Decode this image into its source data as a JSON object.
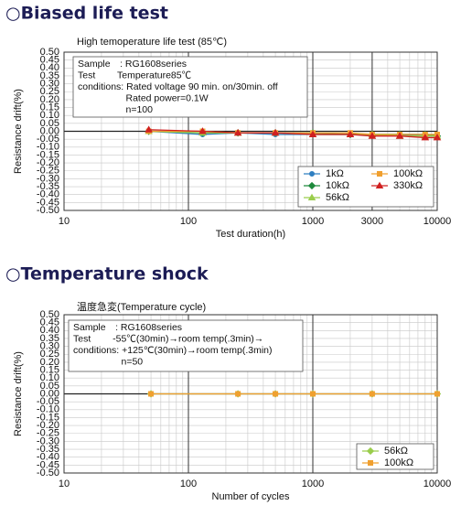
{
  "chart_data": [
    {
      "type": "line",
      "heading": "○Biased  life test",
      "title": "High temoperature life test (85℃)",
      "x_label": "Test duration(h)",
      "y_label": "Resistance drift(%)",
      "xscale": "log",
      "xlim": [
        10,
        10000
      ],
      "xticks": [
        10,
        100,
        1000,
        3000,
        10000
      ],
      "xminorticks": [
        20,
        30,
        40,
        50,
        60,
        70,
        80,
        90,
        200,
        300,
        400,
        500,
        600,
        700,
        800,
        900,
        2000,
        4000,
        5000,
        6000,
        7000,
        8000,
        9000
      ],
      "ylim": [
        -0.5,
        0.5
      ],
      "yticks": [
        {
          "value": 0.5,
          "label": "0.50"
        },
        {
          "value": 0.45,
          "label": "0.45"
        },
        {
          "value": 0.4,
          "label": "0.40"
        },
        {
          "value": 0.35,
          "label": "0.35"
        },
        {
          "value": 0.3,
          "label": "0.30"
        },
        {
          "value": 0.25,
          "label": "0.25"
        },
        {
          "value": 0.2,
          "label": "0.20"
        },
        {
          "value": 0.15,
          "label": "0.15"
        },
        {
          "value": 0.1,
          "label": "0.10"
        },
        {
          "value": 0.05,
          "label": "0.05"
        },
        {
          "value": 0,
          "label": "0.00"
        },
        {
          "value": -0.05,
          "label": "-0.05"
        },
        {
          "value": -0.1,
          "label": "-0.10"
        },
        {
          "value": -0.15,
          "label": "-0.15"
        },
        {
          "value": -0.2,
          "label": "-0.20"
        },
        {
          "value": -0.25,
          "label": "-0.25"
        },
        {
          "value": -0.3,
          "label": "-0.30"
        },
        {
          "value": -0.35,
          "label": "-0.35"
        },
        {
          "value": -0.4,
          "label": "-0.40"
        },
        {
          "value": -0.45,
          "label": "-0.45"
        },
        {
          "value": -0.5,
          "label": "-0.50"
        }
      ],
      "grid": true,
      "legend": "lower right",
      "legend_columns": 2,
      "annotation": [
        "Sample　: RG1608series",
        "Test　　 Temperature85℃",
        "conditions: Rated voltage 90 min. on/30min. off",
        "　　　　　Rated power=0.1W",
        "　　　　　n=100"
      ],
      "x": [
        48,
        130,
        250,
        500,
        1000,
        2000,
        3000,
        5000,
        8000,
        10000
      ],
      "series": [
        {
          "name": "1kΩ",
          "color": "#2f7fc1",
          "marker": "circle",
          "values": [
            0,
            -0.02,
            -0.01,
            -0.02,
            -0.02,
            -0.02,
            -0.02,
            -0.02,
            -0.03,
            -0.03
          ]
        },
        {
          "name": "10kΩ",
          "color": "#1e8a3c",
          "marker": "diamond",
          "values": [
            0,
            -0.01,
            -0.01,
            -0.01,
            -0.01,
            -0.02,
            -0.02,
            -0.02,
            -0.02,
            -0.03
          ]
        },
        {
          "name": "56kΩ",
          "color": "#9acd4c",
          "marker": "triangle",
          "values": [
            0,
            -0.01,
            -0.01,
            -0.01,
            -0.02,
            -0.02,
            -0.02,
            -0.03,
            -0.03,
            -0.03
          ]
        },
        {
          "name": "100kΩ",
          "color": "#f0a030",
          "marker": "square",
          "values": [
            0,
            0,
            -0.01,
            -0.01,
            -0.01,
            -0.01,
            -0.02,
            -0.02,
            -0.02,
            -0.02
          ]
        },
        {
          "name": "330kΩ",
          "color": "#d02020",
          "marker": "triangle",
          "values": [
            0.01,
            0,
            -0.01,
            -0.01,
            -0.02,
            -0.02,
            -0.03,
            -0.03,
            -0.04,
            -0.04
          ]
        }
      ]
    },
    {
      "type": "line",
      "heading": "○Temperature shock",
      "title": "温度急変(Temperature cycle)",
      "x_label": "Number of cycles",
      "y_label": "Resistance drift(%)",
      "xscale": "log",
      "xlim": [
        10,
        10000
      ],
      "xticks": [
        10,
        100,
        1000,
        10000
      ],
      "xminorticks": [
        20,
        30,
        40,
        50,
        60,
        70,
        80,
        90,
        200,
        300,
        400,
        500,
        600,
        700,
        800,
        900,
        2000,
        3000,
        4000,
        5000,
        6000,
        7000,
        8000,
        9000
      ],
      "ylim": [
        -0.5,
        0.5
      ],
      "yticks": [
        {
          "value": 0.5,
          "label": "0.50"
        },
        {
          "value": 0.45,
          "label": "0.45"
        },
        {
          "value": 0.4,
          "label": "0.40"
        },
        {
          "value": 0.35,
          "label": "0.35"
        },
        {
          "value": 0.3,
          "label": "0.30"
        },
        {
          "value": 0.25,
          "label": "0.25"
        },
        {
          "value": 0.2,
          "label": "0.20"
        },
        {
          "value": 0.15,
          "label": "0.15"
        },
        {
          "value": 0.1,
          "label": "0.10"
        },
        {
          "value": 0.05,
          "label": "0.05"
        },
        {
          "value": 0,
          "label": "0.00"
        },
        {
          "value": -0.05,
          "label": "-0.05"
        },
        {
          "value": -0.1,
          "label": "-0.10"
        },
        {
          "value": -0.15,
          "label": "-0.15"
        },
        {
          "value": -0.2,
          "label": "-0.20"
        },
        {
          "value": -0.25,
          "label": "-0.25"
        },
        {
          "value": -0.3,
          "label": "-0.30"
        },
        {
          "value": -0.35,
          "label": "-0.35"
        },
        {
          "value": -0.4,
          "label": "-0.40"
        },
        {
          "value": -0.45,
          "label": "-0.45"
        },
        {
          "value": -0.5,
          "label": "-0.50"
        }
      ],
      "grid": true,
      "legend": "lower right",
      "legend_columns": 1,
      "annotation": [
        "Sample　: RG1608series",
        "Test　　 -55℃(30min)→room temp(.3min)→",
        "conditions: +125℃(30min)→room temp(.3min)",
        "　　　　　n=50"
      ],
      "x": [
        50,
        250,
        500,
        1000,
        3000,
        10000
      ],
      "series": [
        {
          "name": "56kΩ",
          "color": "#9acd4c",
          "marker": "diamond",
          "values": [
            0,
            0,
            0,
            0,
            0,
            0
          ]
        },
        {
          "name": "100kΩ",
          "color": "#f0a030",
          "marker": "square",
          "values": [
            0,
            0,
            0,
            0,
            0,
            0
          ]
        }
      ]
    }
  ]
}
